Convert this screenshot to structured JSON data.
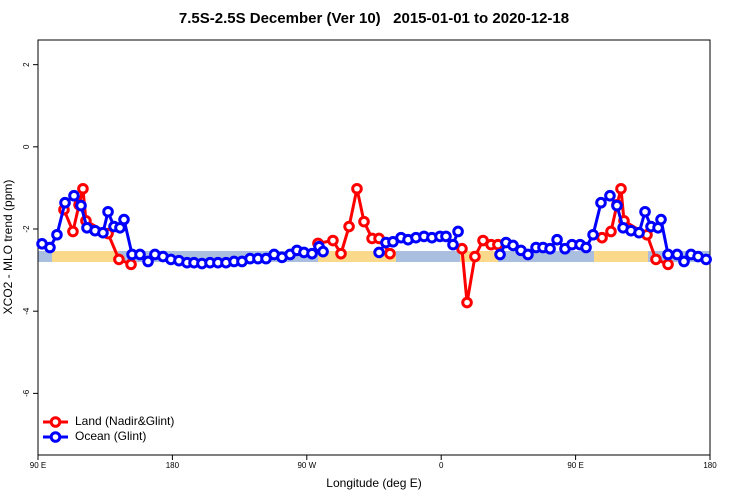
{
  "chart_data": {
    "type": "line",
    "title": "7.5S-2.5S December (Ver 10)   2015-01-01 to 2020-12-18",
    "xlabel": "Longitude (deg E)",
    "ylabel": "XCO2 - MLO trend (ppm)",
    "xlim": [
      90,
      540
    ],
    "ylim": [
      -7.5,
      2.6
    ],
    "xticks": [
      {
        "value": 90,
        "label": "90 E"
      },
      {
        "value": 180,
        "label": "180"
      },
      {
        "value": 270,
        "label": "90 W"
      },
      {
        "value": 360,
        "label": "0"
      },
      {
        "value": 450,
        "label": "90 E"
      },
      {
        "value": 540,
        "label": "180"
      }
    ],
    "yticks": [
      -6,
      -4,
      -2,
      0,
      2
    ],
    "legend": "bottom-left",
    "series": [
      {
        "name": "Land (Nadir&Glint)",
        "color": "#ff0000",
        "x": [
          107.4,
          113.4,
          117.5,
          120.1,
          122.1,
          136.9,
          144.2,
          152.3,
          null,
          277.5,
          287.5,
          292.9,
          298.3,
          303.6,
          308.3,
          313.7,
          318.4,
          325.7,
          null,
          373.9,
          377.3,
          382.6,
          388.0,
          393.4,
          398.0,
          null,
          467.7,
          473.7,
          477.7,
          480.4,
          482.4,
          497.8,
          503.8,
          511.9
        ],
        "values": [
          -1.53,
          -2.06,
          -1.41,
          -1.02,
          -1.8,
          -2.11,
          -2.74,
          -2.86,
          null,
          -2.35,
          -2.28,
          -2.6,
          -1.94,
          -1.02,
          -1.82,
          -2.23,
          -2.23,
          -2.6,
          null,
          -2.48,
          -3.79,
          -2.67,
          -2.28,
          -2.38,
          -2.38,
          null,
          -2.21,
          -2.06,
          -1.41,
          -1.02,
          -1.8,
          -2.14,
          -2.74,
          -2.86
        ]
      },
      {
        "name": "Ocean (Glint)",
        "color": "#0000ff",
        "x": [
          92.7,
          98.0,
          102.7,
          108.1,
          114.1,
          118.8,
          122.8,
          128.2,
          133.5,
          136.9,
          140.9,
          144.9,
          147.6,
          153.0,
          158.3,
          163.7,
          168.3,
          173.7,
          179.0,
          184.4,
          189.8,
          194.5,
          199.8,
          205.2,
          210.5,
          215.9,
          221.3,
          226.6,
          232.0,
          237.3,
          242.7,
          248.1,
          253.4,
          258.8,
          263.4,
          268.1,
          273.5,
          278.2,
          280.9,
          null,
          318.4,
          323.0,
          327.7,
          333.1,
          337.8,
          343.1,
          348.5,
          353.8,
          359.2,
          363.2,
          367.9,
          371.3,
          null,
          399.4,
          403.4,
          408.1,
          413.4,
          418.1,
          423.5,
          428.2,
          432.9,
          437.6,
          442.9,
          447.6,
          453.0,
          457.0,
          461.7,
          467.0,
          473.0,
          477.7,
          481.8,
          487.1,
          492.5,
          496.5,
          500.5,
          505.2,
          507.2,
          511.9,
          518.0,
          522.6,
          527.3,
          532.0,
          537.4
        ],
        "values": [
          -2.36,
          -2.45,
          -2.14,
          -1.36,
          -1.19,
          -1.43,
          -1.97,
          -2.04,
          -2.09,
          -1.58,
          -1.94,
          -1.97,
          -1.77,
          -2.62,
          -2.62,
          -2.79,
          -2.62,
          -2.67,
          -2.74,
          -2.77,
          -2.82,
          -2.82,
          -2.84,
          -2.82,
          -2.82,
          -2.82,
          -2.79,
          -2.79,
          -2.72,
          -2.72,
          -2.72,
          -2.62,
          -2.69,
          -2.62,
          -2.52,
          -2.57,
          -2.6,
          -2.43,
          -2.55,
          null,
          -2.57,
          -2.33,
          -2.31,
          -2.21,
          -2.26,
          -2.21,
          -2.18,
          -2.21,
          -2.18,
          -2.18,
          -2.38,
          -2.06,
          null,
          -2.62,
          -2.33,
          -2.4,
          -2.52,
          -2.62,
          -2.45,
          -2.45,
          -2.48,
          -2.26,
          -2.48,
          -2.38,
          -2.38,
          -2.45,
          -2.14,
          -1.36,
          -1.19,
          -1.43,
          -1.97,
          -2.04,
          -2.09,
          -1.58,
          -1.94,
          -1.97,
          -1.77,
          -2.62,
          -2.62,
          -2.79,
          -2.62,
          -2.67,
          -2.74
        ]
      }
    ]
  }
}
